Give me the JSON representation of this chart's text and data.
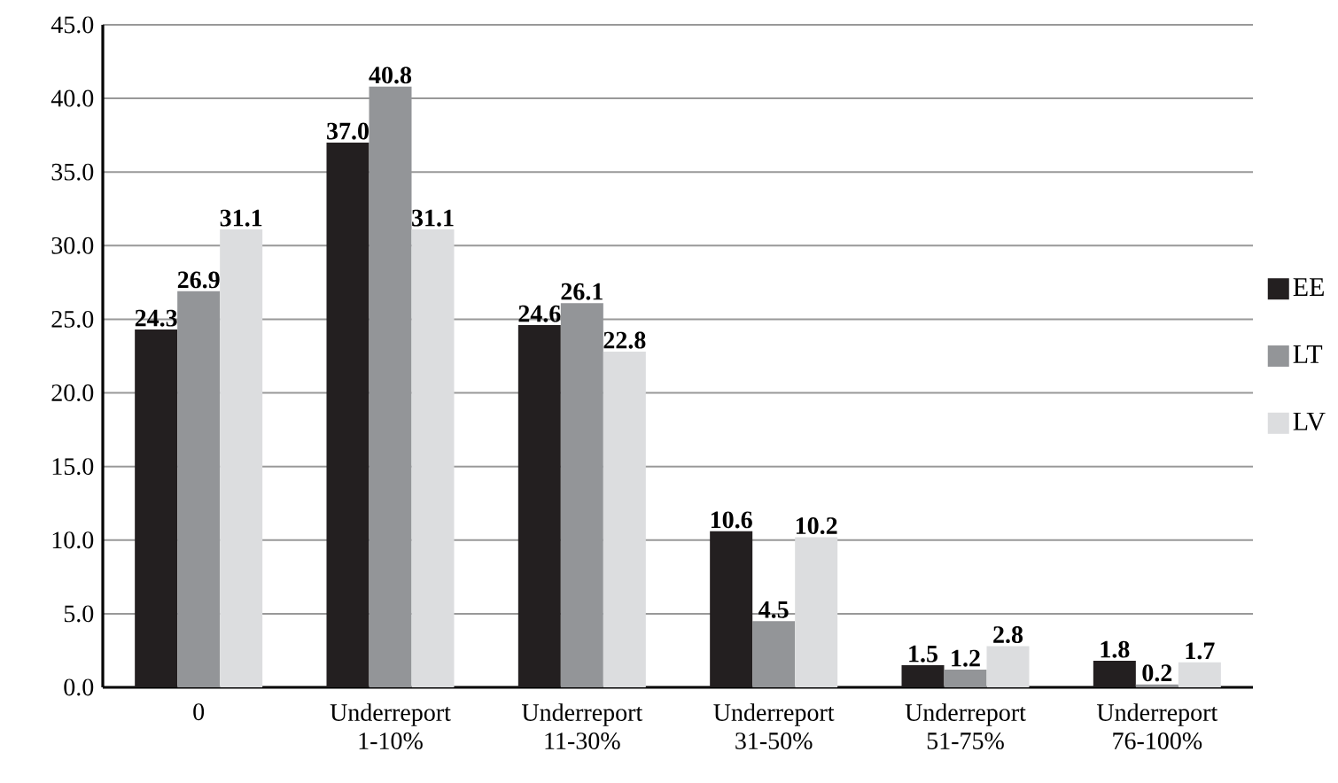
{
  "chart_data": {
    "type": "bar",
    "categories": [
      "0",
      "Underreport 1-10%",
      "Underreport 11-30%",
      "Underreport 31-50%",
      "Underreport 51-75%",
      "Underreport 76-100%"
    ],
    "series": [
      {
        "name": "EE",
        "color": "#231f20",
        "values": [
          24.3,
          37.0,
          24.6,
          10.6,
          1.5,
          1.8
        ],
        "value_labels": [
          "24.3",
          "37.0",
          "24.6",
          "10.6",
          "1.5",
          "1.8"
        ]
      },
      {
        "name": "LT",
        "color": "#939598",
        "values": [
          26.9,
          40.8,
          26.1,
          4.5,
          1.2,
          0.2
        ],
        "value_labels": [
          "26.9",
          "40.8",
          "26.1",
          "4.5",
          "1.2",
          "0.2"
        ]
      },
      {
        "name": "LV",
        "color": "#dcdddf",
        "values": [
          31.1,
          31.1,
          22.8,
          10.2,
          2.8,
          1.7
        ],
        "value_labels": [
          "31.1",
          "31.1",
          "22.8",
          "10.2",
          "2.8",
          "1.7"
        ]
      }
    ],
    "ylim": [
      0,
      45
    ],
    "yticks": [
      {
        "value": 0,
        "label": "0.0"
      },
      {
        "value": 5,
        "label": "5.0"
      },
      {
        "value": 10,
        "label": "10.0"
      },
      {
        "value": 15,
        "label": "15.0"
      },
      {
        "value": 20,
        "label": "20.0"
      },
      {
        "value": 25,
        "label": "25.0"
      },
      {
        "value": 30,
        "label": "30.0"
      },
      {
        "value": 35,
        "label": "35.0"
      },
      {
        "value": 40,
        "label": "40.0"
      },
      {
        "value": 45,
        "label": "45.0"
      }
    ],
    "grid": "y",
    "legend": "right"
  }
}
